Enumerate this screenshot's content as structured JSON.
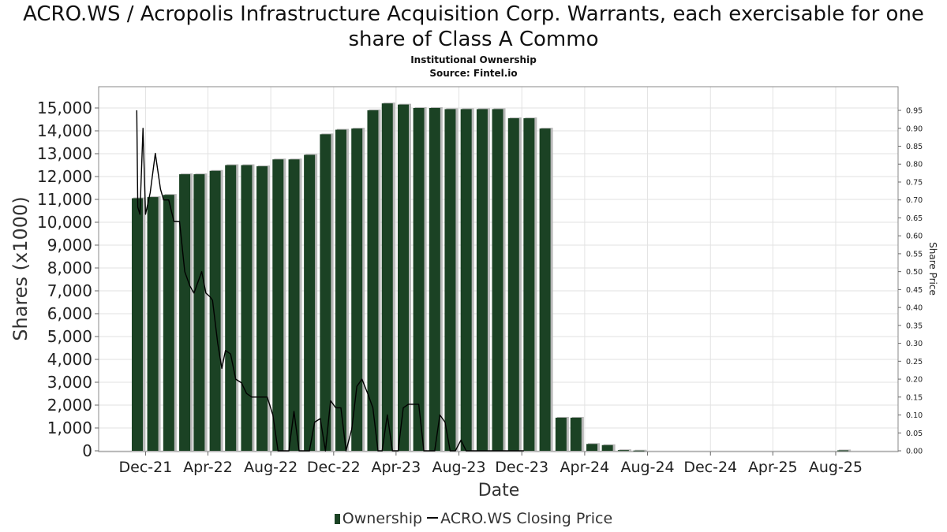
{
  "chart_data": {
    "type": "bar",
    "title": "ACRO.WS / Acropolis Infrastructure Acquisition Corp. Warrants, each exercisable for one share of Class A Commo",
    "subtitle_1": "Institutional Ownership",
    "subtitle_2": "Source: Fintel.io",
    "xlabel": "Date",
    "ylabel": "Shares (x1000)",
    "y2label": "Share Price",
    "x_range": [
      "2021-09-01",
      "2025-11-30"
    ],
    "ylim": [
      0,
      16000
    ],
    "y2lim": [
      0,
      0.98
    ],
    "grid": true,
    "y_ticks": [
      0,
      1000,
      2000,
      3000,
      4000,
      5000,
      6000,
      7000,
      8000,
      9000,
      10000,
      11000,
      12000,
      13000,
      14000,
      15000
    ],
    "y_tick_labels": [
      "0",
      "1,000",
      "2,000",
      "3,000",
      "4,000",
      "5,000",
      "6,000",
      "7,000",
      "8,000",
      "9,000",
      "10,000",
      "11,000",
      "12,000",
      "13,000",
      "14,000",
      "15,000"
    ],
    "y2_ticks": [
      0,
      0.05,
      0.1,
      0.15,
      0.2,
      0.25,
      0.3,
      0.35,
      0.4,
      0.45,
      0.5,
      0.55,
      0.6,
      0.65,
      0.7,
      0.75,
      0.8,
      0.85,
      0.9,
      0.95
    ],
    "y2_tick_labels": [
      "0.00",
      "0.05",
      "0.10",
      "0.15",
      "0.20",
      "0.25",
      "0.30",
      "0.35",
      "0.40",
      "0.45",
      "0.50",
      "0.55",
      "0.60",
      "0.65",
      "0.70",
      "0.75",
      "0.80",
      "0.85",
      "0.90",
      "0.95"
    ],
    "x_ticks": [
      "2021-12-01",
      "2022-04-01",
      "2022-08-01",
      "2022-12-01",
      "2023-04-01",
      "2023-08-01",
      "2023-12-01",
      "2024-04-01",
      "2024-08-01",
      "2024-12-01",
      "2025-04-01",
      "2025-08-01"
    ],
    "x_tick_labels": [
      "Dec-21",
      "Apr-22",
      "Aug-22",
      "Dec-22",
      "Apr-23",
      "Aug-23",
      "Dec-23",
      "Apr-24",
      "Aug-24",
      "Dec-24",
      "Apr-25",
      "Aug-25"
    ],
    "legend_position": "bottom",
    "series": [
      {
        "name": "Ownership",
        "type": "bar",
        "color": "#1b4224",
        "x": [
          "2021-11-15",
          "2021-12-15",
          "2022-01-15",
          "2022-02-15",
          "2022-03-15",
          "2022-04-15",
          "2022-05-15",
          "2022-06-15",
          "2022-07-15",
          "2022-08-15",
          "2022-09-15",
          "2022-10-15",
          "2022-11-15",
          "2022-12-15",
          "2023-01-15",
          "2023-02-15",
          "2023-03-15",
          "2023-04-15",
          "2023-05-15",
          "2023-06-15",
          "2023-07-15",
          "2023-08-15",
          "2023-09-15",
          "2023-10-15",
          "2023-11-15",
          "2023-12-15",
          "2024-01-15",
          "2024-02-15",
          "2024-03-15",
          "2024-04-15",
          "2024-05-15",
          "2024-06-15",
          "2024-07-15",
          "2025-08-15"
        ],
        "values": [
          11050,
          11100,
          11200,
          12100,
          12100,
          12250,
          12500,
          12500,
          12450,
          12750,
          12750,
          12950,
          13850,
          14050,
          14100,
          14900,
          15200,
          15150,
          15000,
          15000,
          14950,
          14950,
          14950,
          14950,
          14550,
          14550,
          14100,
          1450,
          1450,
          300,
          250,
          30,
          10,
          20
        ]
      },
      {
        "name": "ACRO.WS Closing Price",
        "type": "line",
        "color": "#000000",
        "x": [
          "2021-11-14",
          "2021-11-16",
          "2021-11-20",
          "2021-11-26",
          "2021-12-01",
          "2021-12-10",
          "2021-12-20",
          "2021-12-30",
          "2022-01-05",
          "2022-01-15",
          "2022-01-25",
          "2022-02-05",
          "2022-02-15",
          "2022-02-25",
          "2022-03-05",
          "2022-03-10",
          "2022-03-20",
          "2022-03-28",
          "2022-04-05",
          "2022-04-10",
          "2022-04-20",
          "2022-04-28",
          "2022-05-05",
          "2022-05-15",
          "2022-05-25",
          "2022-06-05",
          "2022-06-15",
          "2022-06-25",
          "2022-07-05",
          "2022-07-15",
          "2022-07-25",
          "2022-08-05",
          "2022-08-15",
          "2022-08-25",
          "2022-09-05",
          "2022-09-15",
          "2022-09-25",
          "2022-10-05",
          "2022-10-15",
          "2022-10-25",
          "2022-11-05",
          "2022-11-15",
          "2022-11-25",
          "2022-12-05",
          "2022-12-15",
          "2022-12-25",
          "2023-01-05",
          "2023-01-15",
          "2023-01-25",
          "2023-02-05",
          "2023-02-15",
          "2023-02-25",
          "2023-03-05",
          "2023-03-15",
          "2023-03-25",
          "2023-04-05",
          "2023-04-15",
          "2023-04-25",
          "2023-05-05",
          "2023-05-15",
          "2023-05-25",
          "2023-06-05",
          "2023-06-15",
          "2023-06-25",
          "2023-07-05",
          "2023-07-15",
          "2023-07-25",
          "2023-08-05",
          "2023-08-15",
          "2023-08-25",
          "2023-09-05",
          "2023-09-15",
          "2023-09-25",
          "2023-10-05",
          "2023-10-15",
          "2023-10-25",
          "2023-11-05",
          "2023-11-15",
          "2023-11-25",
          "2023-12-05"
        ],
        "values": [
          0.95,
          0.68,
          0.66,
          0.9,
          0.66,
          0.72,
          0.83,
          0.73,
          0.7,
          0.7,
          0.64,
          0.64,
          0.5,
          0.46,
          0.44,
          0.46,
          0.5,
          0.44,
          0.43,
          0.42,
          0.3,
          0.23,
          0.28,
          0.27,
          0.2,
          0.19,
          0.16,
          0.15,
          0.15,
          0.15,
          0.15,
          0.1,
          0.0,
          0.0,
          0.0,
          0.11,
          0.0,
          0.0,
          0.0,
          0.08,
          0.09,
          0.0,
          0.14,
          0.12,
          0.12,
          0.0,
          0.06,
          0.18,
          0.2,
          0.16,
          0.12,
          0.0,
          0.0,
          0.1,
          0.0,
          0.0,
          0.12,
          0.13,
          0.13,
          0.13,
          0.0,
          0.0,
          0.0,
          0.1,
          0.08,
          0.0,
          0.0,
          0.03,
          0.0,
          0.0,
          0.0,
          0.0,
          0.0,
          0.0,
          0.0,
          0.0,
          0.0,
          0.0,
          0.0,
          0.0
        ]
      }
    ]
  }
}
